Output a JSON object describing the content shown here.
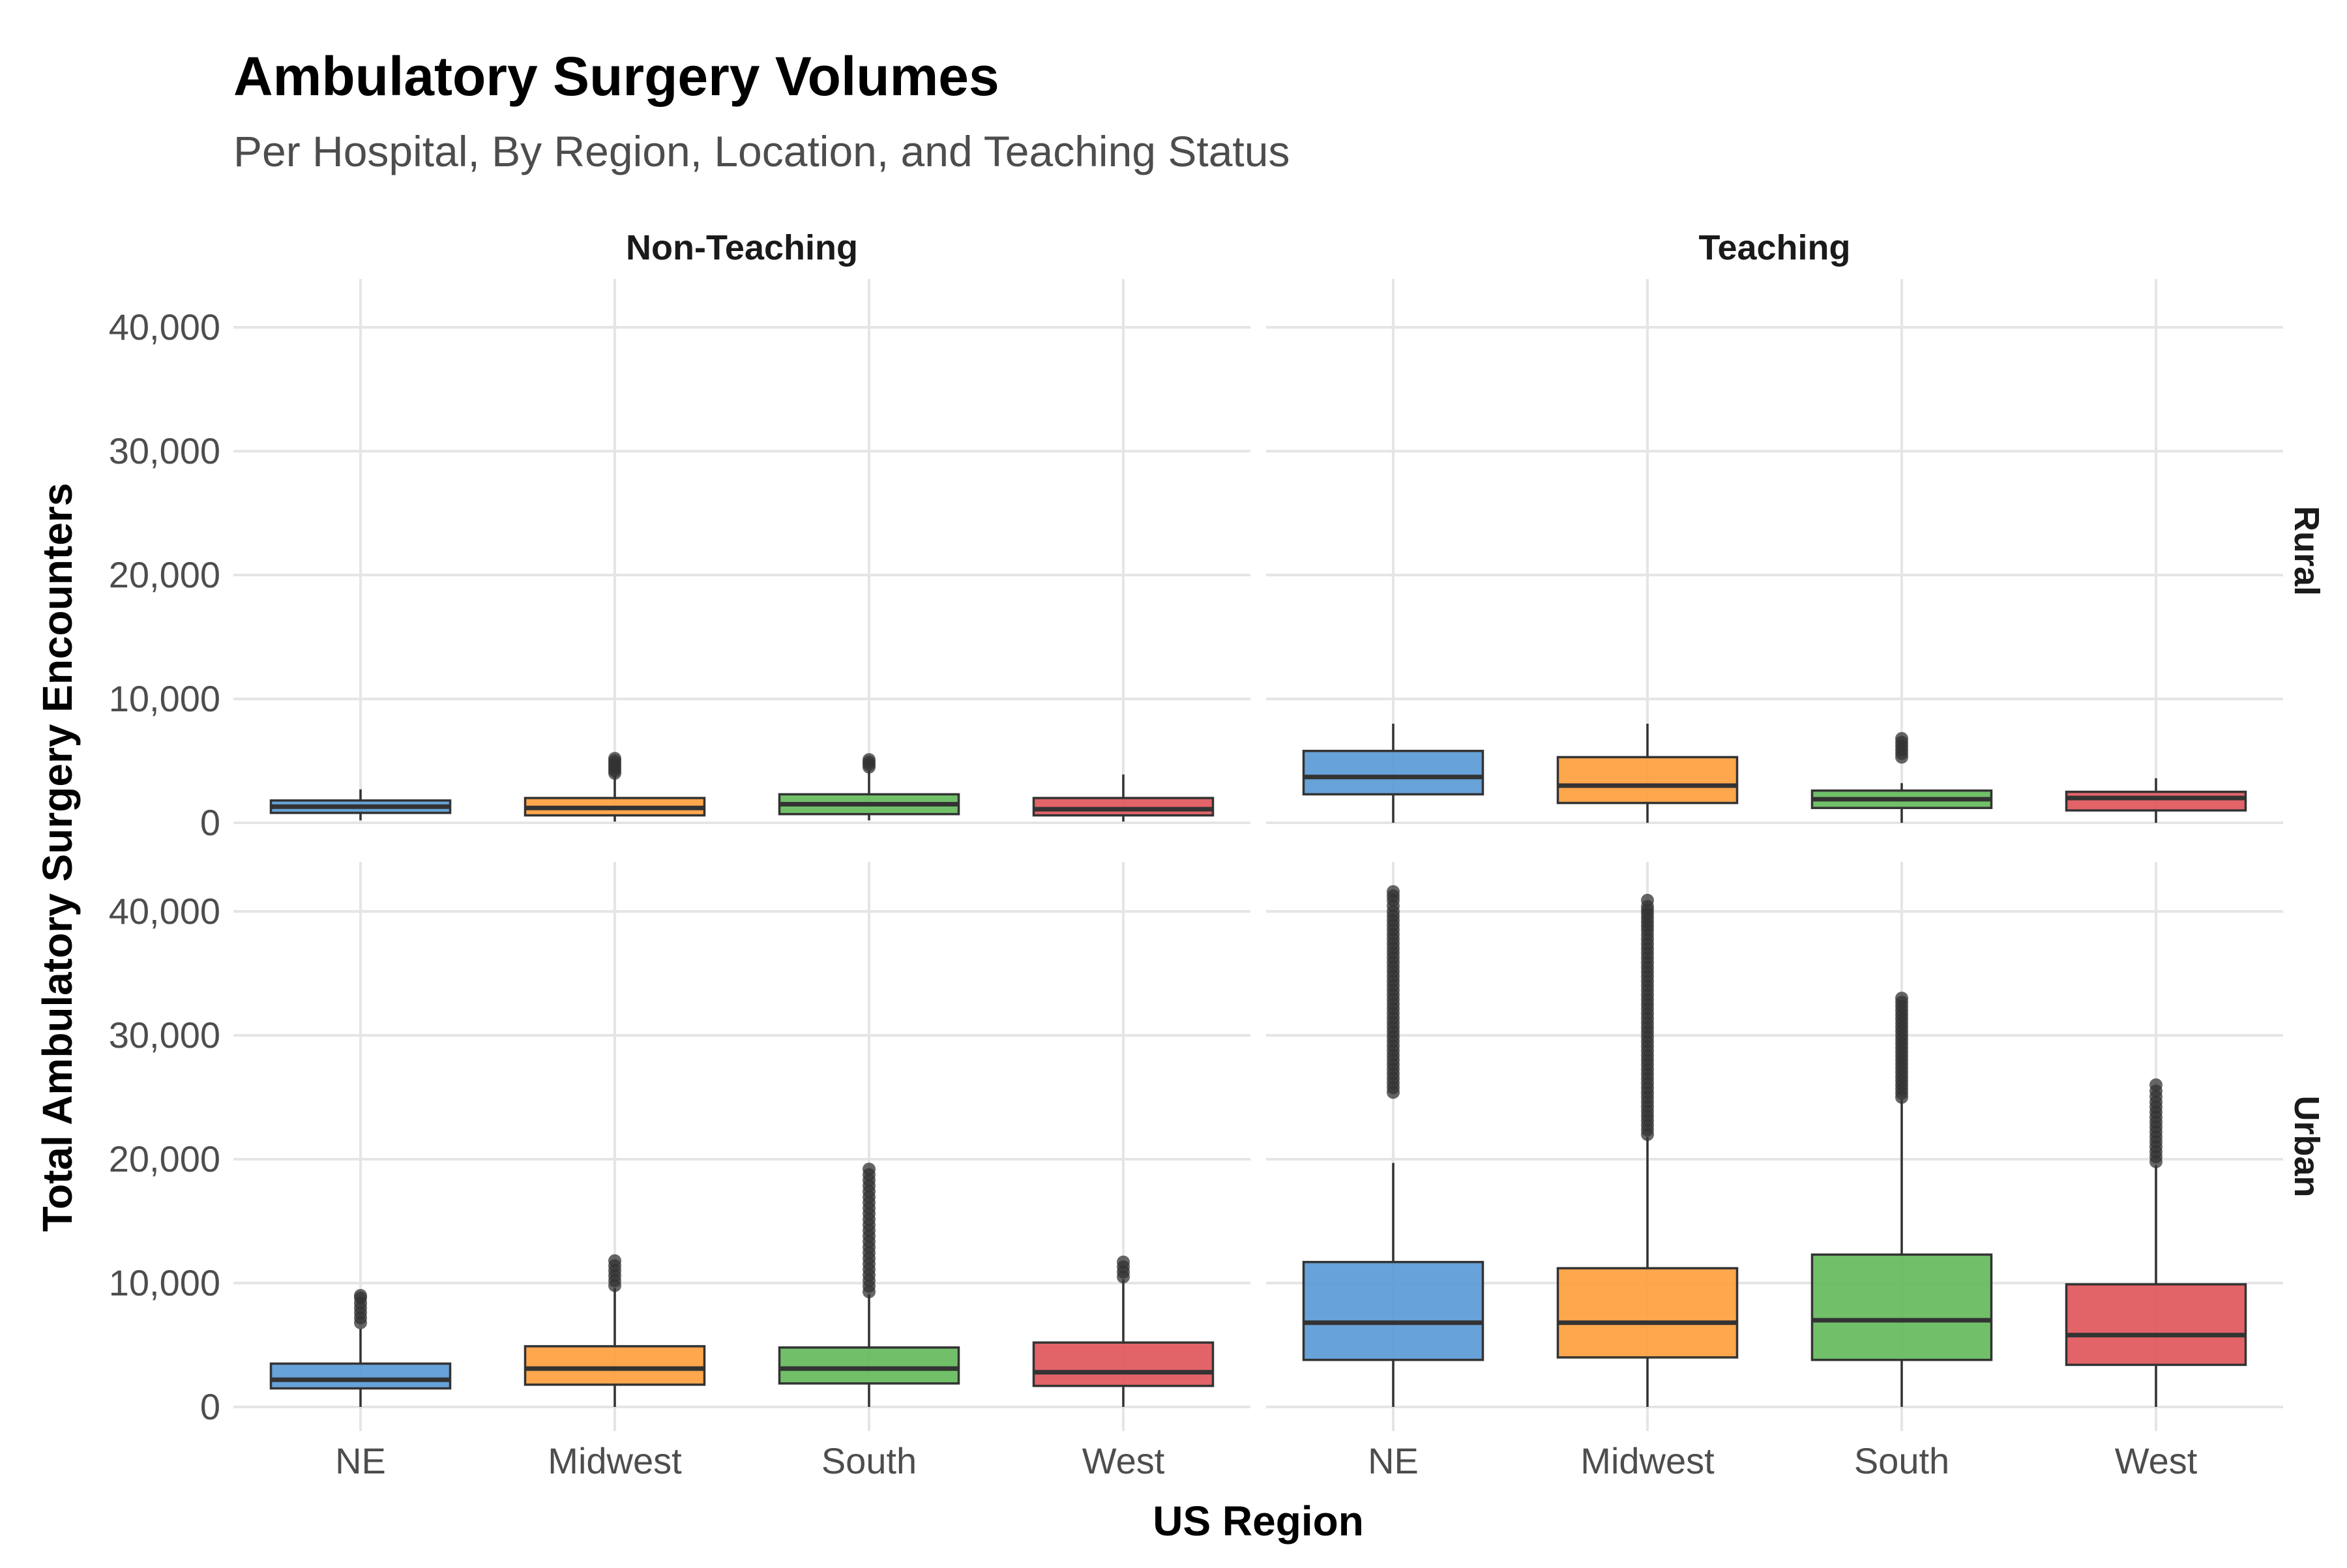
{
  "chart_data": {
    "type": "box",
    "title": "Ambulatory Surgery Volumes",
    "subtitle": "Per Hospital, By Region, Location, and Teaching Status",
    "xlabel": "US Region",
    "ylabel": "Total Ambulatory Surgery Encounters",
    "categories": [
      "NE",
      "Midwest",
      "South",
      "West"
    ],
    "colors": {
      "NE": "#5b9bd5",
      "Midwest": "#ffa040",
      "South": "#66bb5e",
      "West": "#e0585e"
    },
    "col_facets": [
      "Non-Teaching",
      "Teaching"
    ],
    "row_facets": [
      "Rural",
      "Urban"
    ],
    "ylim": [
      0,
      42000
    ],
    "yticks": [
      0,
      10000,
      20000,
      30000,
      40000
    ],
    "ytick_labels": [
      "0",
      "10,000",
      "20,000",
      "30,000",
      "40,000"
    ],
    "grid": true,
    "legend": "none",
    "panels": [
      {
        "row": "Rural",
        "col": "Non-Teaching",
        "boxes": [
          {
            "category": "NE",
            "whisker_low": 200,
            "q1": 800,
            "median": 1300,
            "q3": 1800,
            "whisker_high": 2700,
            "outliers": []
          },
          {
            "category": "Midwest",
            "whisker_low": 100,
            "q1": 600,
            "median": 1200,
            "q3": 2000,
            "whisker_high": 3800,
            "outliers": [
              4000,
              4200,
              4400,
              4600,
              4800,
              5000,
              5200
            ]
          },
          {
            "category": "South",
            "whisker_low": 200,
            "q1": 700,
            "median": 1500,
            "q3": 2300,
            "whisker_high": 4200,
            "outliers": [
              4500,
              4700,
              4900,
              5100
            ]
          },
          {
            "category": "West",
            "whisker_low": 100,
            "q1": 600,
            "median": 1100,
            "q3": 2000,
            "whisker_high": 3900,
            "outliers": []
          }
        ]
      },
      {
        "row": "Rural",
        "col": "Teaching",
        "boxes": [
          {
            "category": "NE",
            "whisker_low": 0,
            "q1": 2300,
            "median": 3700,
            "q3": 5800,
            "whisker_high": 8000,
            "outliers": []
          },
          {
            "category": "Midwest",
            "whisker_low": 0,
            "q1": 1600,
            "median": 3000,
            "q3": 5300,
            "whisker_high": 8000,
            "outliers": []
          },
          {
            "category": "South",
            "whisker_low": 0,
            "q1": 1200,
            "median": 1900,
            "q3": 2600,
            "whisker_high": 3200,
            "outliers": [
              5300,
              5600,
              5900,
              6200,
              6500,
              6800
            ]
          },
          {
            "category": "West",
            "whisker_low": 0,
            "q1": 1000,
            "median": 2000,
            "q3": 2500,
            "whisker_high": 3600,
            "outliers": []
          }
        ]
      },
      {
        "row": "Urban",
        "col": "Non-Teaching",
        "boxes": [
          {
            "category": "NE",
            "whisker_low": 0,
            "q1": 1500,
            "median": 2200,
            "q3": 3500,
            "whisker_high": 6300,
            "outliers": [
              6800,
              7200,
              7600,
              8000,
              8400,
              8800,
              9000
            ]
          },
          {
            "category": "Midwest",
            "whisker_low": 0,
            "q1": 1800,
            "median": 3100,
            "q3": 4900,
            "whisker_high": 9600,
            "outliers": [
              9800,
              10200,
              10600,
              11000,
              11400,
              11800
            ]
          },
          {
            "category": "South",
            "whisker_low": 0,
            "q1": 1900,
            "median": 3100,
            "q3": 4800,
            "whisker_high": 9100,
            "outliers": [
              9300,
              10200,
              11100,
              12000,
              12900,
              13800,
              14700,
              15600,
              16500,
              17400,
              18300,
              19200
            ]
          },
          {
            "category": "West",
            "whisker_low": 0,
            "q1": 1700,
            "median": 2800,
            "q3": 5200,
            "whisker_high": 10300,
            "outliers": [
              10500,
              10900,
              11300,
              11700
            ]
          }
        ]
      },
      {
        "row": "Urban",
        "col": "Teaching",
        "boxes": [
          {
            "category": "NE",
            "whisker_low": 0,
            "q1": 3800,
            "median": 6800,
            "q3": 11700,
            "whisker_high": 19700,
            "outliers": [
              25400,
              26900,
              28400,
              29900,
              31400,
              32900,
              34400,
              35900,
              37400,
              38900,
              40000,
              40900,
              41600
            ]
          },
          {
            "category": "Midwest",
            "whisker_low": 0,
            "q1": 4000,
            "median": 6800,
            "q3": 11200,
            "whisker_high": 21800,
            "outliers": [
              22000,
              23500,
              25000,
              26500,
              28000,
              29500,
              31000,
              32500,
              34000,
              35500,
              37000,
              38500,
              39800,
              40400,
              40900
            ]
          },
          {
            "category": "South",
            "whisker_low": 0,
            "q1": 3800,
            "median": 7000,
            "q3": 12300,
            "whisker_high": 24800,
            "outliers": [
              25000,
              26000,
              27000,
              28000,
              29000,
              30000,
              31000,
              32000,
              33000
            ]
          },
          {
            "category": "West",
            "whisker_low": 0,
            "q1": 3400,
            "median": 5800,
            "q3": 9900,
            "whisker_high": 19500,
            "outliers": [
              19800,
              21000,
              22200,
              23400,
              24600,
              25500,
              26000
            ]
          }
        ]
      }
    ]
  }
}
